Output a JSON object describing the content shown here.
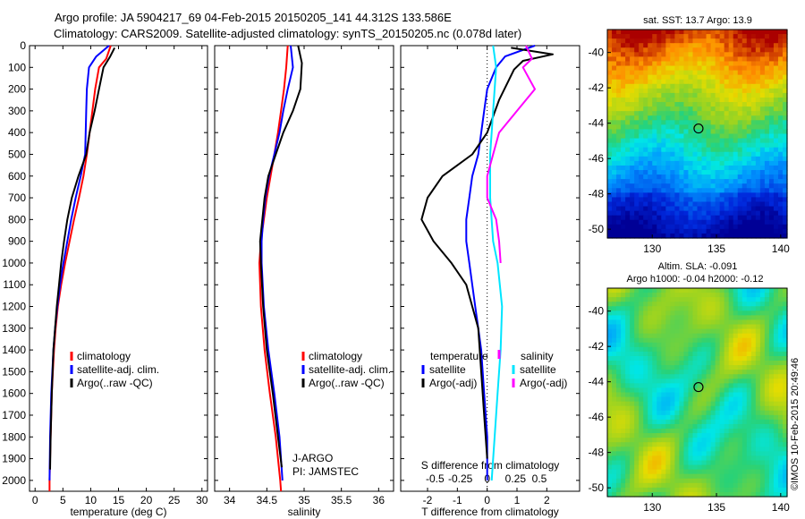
{
  "title_line1": "Argo profile: JA 5904217_69 04-Feb-2015 20150205_141 44.312S 133.586E",
  "title_line2": "Climatology: CARS2009. Satellite-adjusted climatology: synTS_20150205.nc (0.078d later)",
  "credit": "©IMOS 10-Feb-2015 20:49:46",
  "colors": {
    "climatology": "#ff0000",
    "satellite": "#0000ff",
    "argo": "#000000",
    "salinity": "#00e5ff",
    "salinity_argo": "#ff00ff"
  },
  "chart_data": [
    {
      "id": "temperature",
      "type": "line",
      "xlabel": "temperature (deg C)",
      "xlim": [
        -1,
        31
      ],
      "ylim": [
        2050,
        0
      ],
      "xticks": [
        "0",
        "5",
        "10",
        "15",
        "20",
        "25",
        "30"
      ],
      "yticks": [
        "0",
        "100",
        "200",
        "300",
        "400",
        "500",
        "600",
        "700",
        "800",
        "900",
        "1000",
        "1100",
        "1200",
        "1300",
        "1400",
        "1500",
        "1600",
        "1700",
        "1800",
        "1900",
        "2000"
      ],
      "legend": [
        "climatology",
        "satellite-adj. clim.",
        "Argo(..raw -QC)"
      ],
      "series": [
        {
          "name": "climatology",
          "color": "#ff0000",
          "points": [
            [
              13.6,
              0
            ],
            [
              12.8,
              60
            ],
            [
              11.5,
              100
            ],
            [
              10.8,
              200
            ],
            [
              10.3,
              300
            ],
            [
              9.8,
              400
            ],
            [
              9.3,
              500
            ],
            [
              8.7,
              600
            ],
            [
              7.9,
              700
            ],
            [
              7.0,
              800
            ],
            [
              6.2,
              900
            ],
            [
              5.4,
              1000
            ],
            [
              4.7,
              1100
            ],
            [
              4.1,
              1200
            ],
            [
              3.7,
              1300
            ],
            [
              3.4,
              1400
            ],
            [
              3.2,
              1500
            ],
            [
              3.0,
              1600
            ],
            [
              2.8,
              1800
            ],
            [
              2.6,
              2000
            ],
            [
              2.6,
              2050
            ]
          ]
        },
        {
          "name": "satellite-adj. clim.",
          "color": "#0000ff",
          "points": [
            [
              13.3,
              0
            ],
            [
              11.0,
              50
            ],
            [
              9.7,
              100
            ],
            [
              9.3,
              200
            ],
            [
              9.2,
              300
            ],
            [
              9.1,
              400
            ],
            [
              9.0,
              500
            ],
            [
              8.2,
              600
            ],
            [
              7.3,
              700
            ],
            [
              6.5,
              800
            ],
            [
              5.8,
              900
            ],
            [
              5.1,
              1000
            ],
            [
              4.5,
              1100
            ],
            [
              4.0,
              1200
            ],
            [
              3.6,
              1300
            ],
            [
              3.3,
              1400
            ],
            [
              3.1,
              1500
            ],
            [
              2.9,
              1600
            ],
            [
              2.7,
              1800
            ],
            [
              2.6,
              2000
            ]
          ]
        },
        {
          "name": "Argo(..raw -QC)",
          "color": "#000000",
          "points": [
            [
              14.3,
              10
            ],
            [
              13.5,
              50
            ],
            [
              12.3,
              100
            ],
            [
              11.5,
              200
            ],
            [
              10.7,
              300
            ],
            [
              9.8,
              400
            ],
            [
              9.2,
              500
            ],
            [
              7.8,
              600
            ],
            [
              6.6,
              700
            ],
            [
              5.8,
              800
            ],
            [
              5.2,
              900
            ],
            [
              4.7,
              1000
            ],
            [
              4.3,
              1100
            ],
            [
              3.9,
              1200
            ],
            [
              3.6,
              1300
            ],
            [
              3.3,
              1400
            ],
            [
              3.0,
              1600
            ],
            [
              2.8,
              1800
            ],
            [
              2.7,
              1950
            ]
          ]
        }
      ]
    },
    {
      "id": "salinity",
      "type": "line",
      "xlabel": "salinity",
      "xlim": [
        33.8,
        36.2
      ],
      "ylim": [
        2050,
        0
      ],
      "xticks": [
        "34",
        "34.5",
        "35",
        "35.5",
        "36"
      ],
      "legend": [
        "climatology",
        "satellite-adj. clim.",
        "Argo(..raw -QC)"
      ],
      "annotation": [
        "J-ARGO",
        "PI: JAMSTEC"
      ],
      "series": [
        {
          "name": "climatology",
          "color": "#ff0000",
          "points": [
            [
              34.78,
              0
            ],
            [
              34.76,
              100
            ],
            [
              34.73,
              200
            ],
            [
              34.69,
              300
            ],
            [
              34.65,
              400
            ],
            [
              34.6,
              500
            ],
            [
              34.55,
              600
            ],
            [
              34.5,
              700
            ],
            [
              34.46,
              800
            ],
            [
              34.42,
              900
            ],
            [
              34.4,
              1000
            ],
            [
              34.42,
              1200
            ],
            [
              34.47,
              1400
            ],
            [
              34.54,
              1600
            ],
            [
              34.62,
              1800
            ],
            [
              34.68,
              2000
            ],
            [
              34.69,
              2050
            ]
          ]
        },
        {
          "name": "satellite-adj. clim.",
          "color": "#0000ff",
          "points": [
            [
              34.82,
              0
            ],
            [
              34.85,
              100
            ],
            [
              34.78,
              200
            ],
            [
              34.72,
              300
            ],
            [
              34.67,
              400
            ],
            [
              34.6,
              500
            ],
            [
              34.53,
              600
            ],
            [
              34.48,
              700
            ],
            [
              34.45,
              800
            ],
            [
              34.43,
              900
            ],
            [
              34.43,
              1000
            ],
            [
              34.46,
              1200
            ],
            [
              34.52,
              1400
            ],
            [
              34.6,
              1600
            ],
            [
              34.67,
              1800
            ],
            [
              34.71,
              2000
            ]
          ]
        },
        {
          "name": "Argo(..raw -QC)",
          "color": "#000000",
          "points": [
            [
              34.92,
              0
            ],
            [
              34.97,
              80
            ],
            [
              34.95,
              200
            ],
            [
              34.85,
              300
            ],
            [
              34.72,
              400
            ],
            [
              34.62,
              500
            ],
            [
              34.52,
              600
            ],
            [
              34.47,
              700
            ],
            [
              34.44,
              800
            ],
            [
              34.41,
              900
            ],
            [
              34.42,
              1000
            ],
            [
              34.45,
              1200
            ],
            [
              34.5,
              1400
            ],
            [
              34.58,
              1600
            ],
            [
              34.65,
              1800
            ],
            [
              34.7,
              1940
            ]
          ]
        }
      ]
    },
    {
      "id": "difference",
      "type": "line",
      "xlabel": "T difference from climatology",
      "xlabel_top": "S difference from climatology",
      "xlim": [
        -2.9,
        3.1
      ],
      "ylim": [
        2050,
        0
      ],
      "xticks": [
        "-2",
        "-1",
        "0",
        "1",
        "2"
      ],
      "xticks_top": [
        "-0.5",
        "-0.25",
        "0",
        "0.25",
        "0.5"
      ],
      "legend_left_title": "temperature",
      "legend_right_title": "salinity",
      "legend": [
        "satellite",
        "Argo(-adj)",
        "satellite",
        "Argo(-adj)"
      ],
      "series": [
        {
          "name": "temperature satellite",
          "color": "#0000ff",
          "points": [
            [
              1.6,
              0
            ],
            [
              0.6,
              50
            ],
            [
              0.3,
              100
            ],
            [
              0.0,
              200
            ],
            [
              -0.1,
              300
            ],
            [
              -0.2,
              400
            ],
            [
              -0.3,
              500
            ],
            [
              -0.5,
              600
            ],
            [
              -0.6,
              700
            ],
            [
              -0.7,
              800
            ],
            [
              -0.7,
              900
            ],
            [
              -0.6,
              1000
            ],
            [
              -0.5,
              1100
            ],
            [
              -0.4,
              1200
            ],
            [
              -0.3,
              1300
            ],
            [
              -0.2,
              1400
            ],
            [
              -0.1,
              1600
            ],
            [
              0.0,
              1800
            ],
            [
              0.0,
              2000
            ]
          ]
        },
        {
          "name": "temperature Argo(-adj)",
          "color": "#000000",
          "points": [
            [
              0.8,
              10
            ],
            [
              2.2,
              40
            ],
            [
              1.2,
              70
            ],
            [
              0.9,
              110
            ],
            [
              0.4,
              250
            ],
            [
              0.0,
              400
            ],
            [
              -0.5,
              500
            ],
            [
              -1.5,
              600
            ],
            [
              -2.0,
              700
            ],
            [
              -2.2,
              800
            ],
            [
              -1.8,
              900
            ],
            [
              -1.2,
              1000
            ],
            [
              -0.7,
              1100
            ],
            [
              -0.5,
              1200
            ],
            [
              -0.3,
              1300
            ],
            [
              -0.2,
              1500
            ],
            [
              -0.1,
              1700
            ],
            [
              0.0,
              1900
            ]
          ]
        },
        {
          "name": "salinity satellite",
          "color": "#00e5ff",
          "points": [
            [
              0.2,
              0
            ],
            [
              0.3,
              100
            ],
            [
              0.25,
              200
            ],
            [
              0.2,
              300
            ],
            [
              0.15,
              400
            ],
            [
              0.1,
              500
            ],
            [
              0.1,
              700
            ],
            [
              0.2,
              900
            ],
            [
              0.35,
              1000
            ],
            [
              0.5,
              1200
            ],
            [
              0.45,
              1400
            ],
            [
              0.35,
              1600
            ],
            [
              0.25,
              1800
            ],
            [
              0.15,
              2000
            ]
          ]
        },
        {
          "name": "salinity Argo(-adj)",
          "color": "#ff00ff",
          "points": [
            [
              1.3,
              0
            ],
            [
              1.5,
              60
            ],
            [
              1.2,
              100
            ],
            [
              1.6,
              200
            ],
            [
              1.0,
              300
            ],
            [
              0.4,
              400
            ],
            [
              0.2,
              500
            ],
            [
              0.0,
              600
            ],
            [
              0.0,
              700
            ],
            [
              0.3,
              800
            ],
            [
              0.4,
              900
            ],
            [
              0.45,
              1000
            ]
          ]
        }
      ]
    },
    {
      "id": "sst_map",
      "type": "heatmap",
      "title": "sat. SST: 13.7  Argo: 13.9",
      "xticks": [
        "130",
        "135",
        "140"
      ],
      "yticks": [
        "-40",
        "-42",
        "-44",
        "-46",
        "-48",
        "-50"
      ],
      "xlim": [
        126.5,
        140.5
      ],
      "ylim": [
        -50.5,
        -38.7
      ],
      "marker": [
        133.6,
        -44.3
      ]
    },
    {
      "id": "sla_map",
      "type": "heatmap",
      "title": "Altim. SLA: -0.091",
      "subtitle": "Argo h1000: -0.04  h2000: -0.12",
      "xticks": [
        "130",
        "135",
        "140"
      ],
      "yticks": [
        "-40",
        "-42",
        "-44",
        "-46",
        "-48",
        "-50"
      ],
      "xlim": [
        126.5,
        140.5
      ],
      "ylim": [
        -50.5,
        -38.7
      ],
      "marker": [
        133.6,
        -44.3
      ]
    }
  ]
}
